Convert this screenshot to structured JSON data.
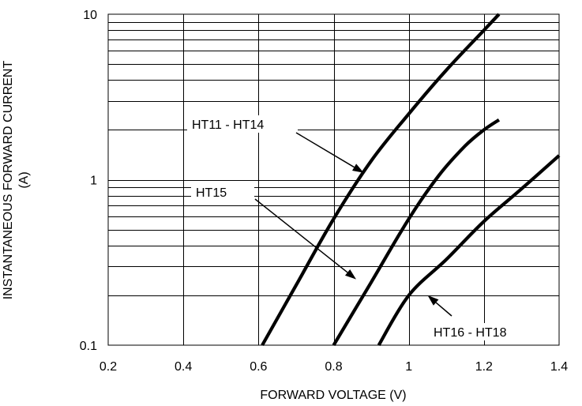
{
  "chart_data": {
    "type": "line",
    "xlabel": "FORWARD VOLTAGE (V)",
    "ylabel": [
      "INSTANTANEOUS FORWARD CURRENT",
      "(A)"
    ],
    "xlim": [
      0.2,
      1.4
    ],
    "ylim": [
      0.1,
      10
    ],
    "yscale": "log",
    "xticks": [
      0.2,
      0.4,
      0.6,
      0.8,
      1.0,
      1.2,
      1.4
    ],
    "xtick_labels": [
      "0.2",
      "0.4",
      "0.6",
      "0.8",
      "1",
      "1.2",
      "1.4"
    ],
    "yticks": [
      0.1,
      1,
      10
    ],
    "ytick_labels": [
      "0.1",
      "1",
      "10"
    ],
    "grid": true,
    "series": [
      {
        "name": "HT11 - HT14",
        "x": [
          0.61,
          0.7,
          0.8,
          0.9,
          1.0,
          1.1,
          1.2,
          1.24
        ],
        "y": [
          0.1,
          0.23,
          0.58,
          1.3,
          2.5,
          4.6,
          8.0,
          10.0
        ]
      },
      {
        "name": "HT15",
        "x": [
          0.8,
          0.9,
          1.0,
          1.08,
          1.15,
          1.2,
          1.24
        ],
        "y": [
          0.1,
          0.24,
          0.58,
          1.06,
          1.6,
          2.0,
          2.3
        ]
      },
      {
        "name": "HT16 - HT18",
        "x": [
          0.92,
          1.0,
          1.1,
          1.2,
          1.3,
          1.4
        ],
        "y": [
          0.1,
          0.2,
          0.33,
          0.56,
          0.88,
          1.4
        ]
      }
    ],
    "annotations": [
      {
        "text": "HT11 - HT14",
        "series": 0,
        "point": [
          0.88,
          1.1
        ]
      },
      {
        "text": "HT15",
        "series": 1,
        "point": [
          0.86,
          0.25
        ]
      },
      {
        "text": "HT16 - HT18",
        "series": 2,
        "point": [
          1.05,
          0.2
        ]
      }
    ]
  }
}
